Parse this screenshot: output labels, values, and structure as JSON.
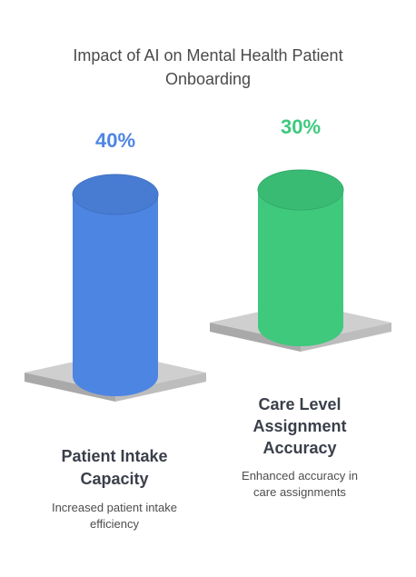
{
  "chart_data": {
    "type": "bar",
    "title": "Impact of AI on Mental Health Patient Onboarding",
    "title_lines": [
      "Impact of AI on Mental Health Patient",
      "Onboarding"
    ],
    "unit": "%",
    "categories": [
      "Patient Intake Capacity",
      "Care Level Assignment Accuracy"
    ],
    "values": [
      40,
      30
    ],
    "value_labels": [
      "40%",
      "30%"
    ],
    "category_lines": [
      [
        "Patient Intake",
        "Capacity"
      ],
      [
        "Care Level",
        "Assignment",
        "Accuracy"
      ]
    ],
    "descriptions": [
      [
        "Increased patient intake",
        "efficiency"
      ],
      [
        "Enhanced accuracy in",
        "care assignments"
      ]
    ],
    "colors": [
      "#4d85e3",
      "#3ec97d"
    ],
    "value_label_colors": [
      "#4d85e3",
      "#3ec97d"
    ],
    "grid": false,
    "legend": "none"
  }
}
